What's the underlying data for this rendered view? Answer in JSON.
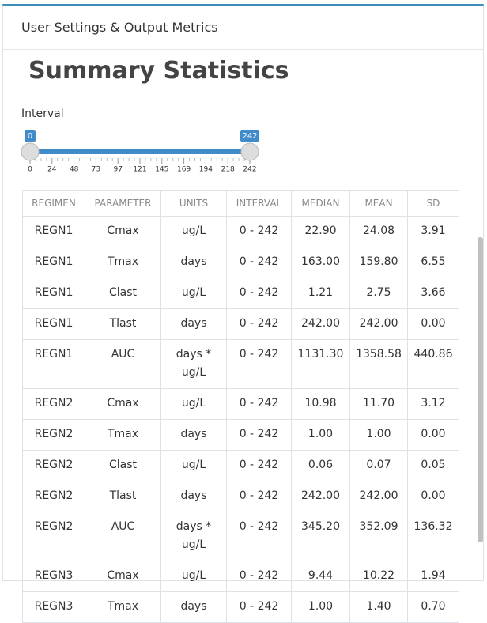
{
  "header": {
    "title": "User Settings & Output Metrics"
  },
  "heading": "Summary Statistics",
  "slider": {
    "label": "Interval",
    "min_label": "0",
    "max_label": "242",
    "ticks": [
      "0",
      "24",
      "48",
      "73",
      "97",
      "121",
      "145",
      "169",
      "194",
      "218",
      "242"
    ]
  },
  "table": {
    "columns": [
      "REGIMEN",
      "PARAMETER",
      "UNITS",
      "INTERVAL",
      "MEDIAN",
      "MEAN",
      "SD"
    ],
    "rows": [
      [
        "REGN1",
        "Cmax",
        "ug/L",
        "0 - 242",
        "22.90",
        "24.08",
        "3.91"
      ],
      [
        "REGN1",
        "Tmax",
        "days",
        "0 - 242",
        "163.00",
        "159.80",
        "6.55"
      ],
      [
        "REGN1",
        "Clast",
        "ug/L",
        "0 - 242",
        "1.21",
        "2.75",
        "3.66"
      ],
      [
        "REGN1",
        "Tlast",
        "days",
        "0 - 242",
        "242.00",
        "242.00",
        "0.00"
      ],
      [
        "REGN1",
        "AUC",
        "days * ug/L",
        "0 - 242",
        "1131.30",
        "1358.58",
        "440.86"
      ],
      [
        "REGN2",
        "Cmax",
        "ug/L",
        "0 - 242",
        "10.98",
        "11.70",
        "3.12"
      ],
      [
        "REGN2",
        "Tmax",
        "days",
        "0 - 242",
        "1.00",
        "1.00",
        "0.00"
      ],
      [
        "REGN2",
        "Clast",
        "ug/L",
        "0 - 242",
        "0.06",
        "0.07",
        "0.05"
      ],
      [
        "REGN2",
        "Tlast",
        "days",
        "0 - 242",
        "242.00",
        "242.00",
        "0.00"
      ],
      [
        "REGN2",
        "AUC",
        "days * ug/L",
        "0 - 242",
        "345.20",
        "352.09",
        "136.32"
      ],
      [
        "REGN3",
        "Cmax",
        "ug/L",
        "0 - 242",
        "9.44",
        "10.22",
        "1.94"
      ],
      [
        "REGN3",
        "Tmax",
        "days",
        "0 - 242",
        "1.00",
        "1.40",
        "0.70"
      ]
    ]
  }
}
